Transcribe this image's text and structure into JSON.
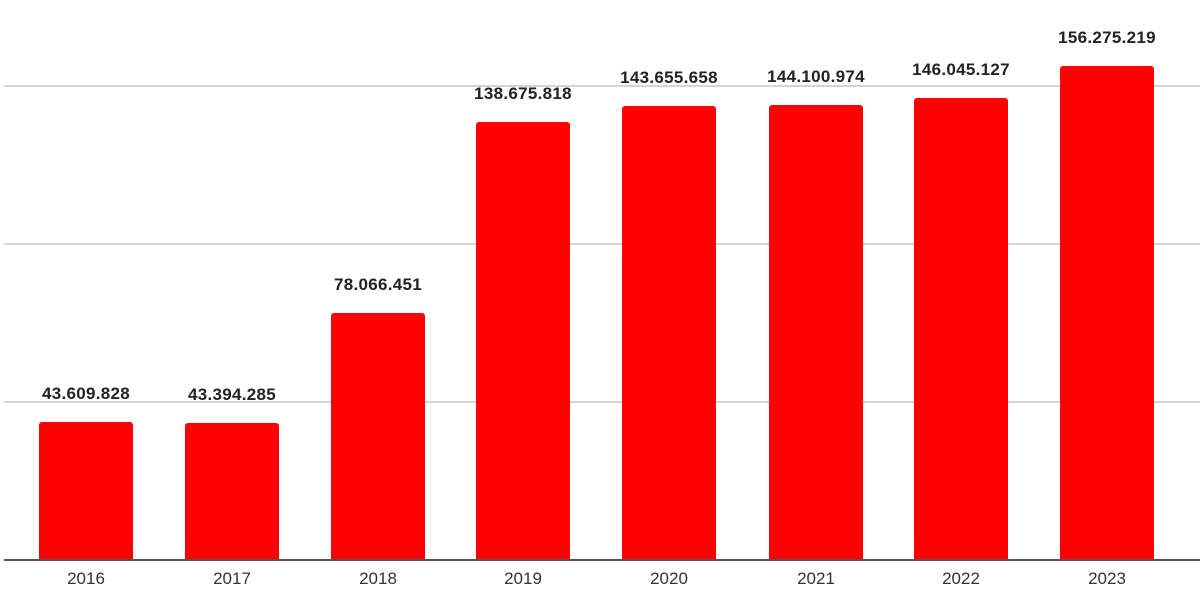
{
  "chart_data": {
    "type": "bar",
    "title": "",
    "xlabel": "",
    "ylabel": "",
    "categories": [
      "2016",
      "2017",
      "2018",
      "2019",
      "2020",
      "2021",
      "2022",
      "2023"
    ],
    "values": [
      43609828,
      43394285,
      78066451,
      138675818,
      143655658,
      144100974,
      146045127,
      156275219
    ],
    "value_labels": [
      "43.609.828",
      "43.394.285",
      "78.066.451",
      "138.675.818",
      "143.655.658",
      "144.100.974",
      "146.045.127",
      "156.275.219"
    ],
    "ylim": [
      0,
      160000000
    ],
    "gridlines": [
      50000000,
      100000000,
      150000000
    ],
    "grid": true,
    "legend": null,
    "bar_color": "#ff0000"
  }
}
